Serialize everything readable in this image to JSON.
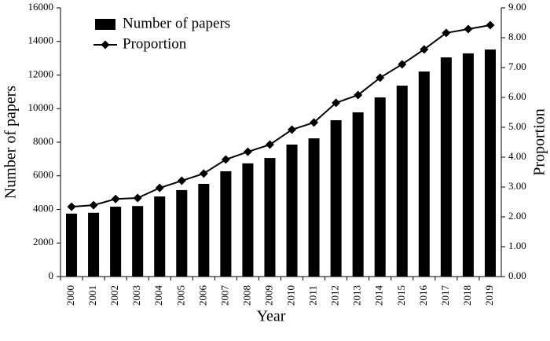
{
  "chart_data": {
    "type": "bar",
    "x_label": "Year",
    "y_label": "Number of papers",
    "y2_label": "Proportion",
    "categories": [
      "2000",
      "2001",
      "2002",
      "2003",
      "2004",
      "2005",
      "2006",
      "2007",
      "2008",
      "2009",
      "2010",
      "2011",
      "2012",
      "2013",
      "2014",
      "2015",
      "2016",
      "2017",
      "2018",
      "2019"
    ],
    "series": [
      {
        "name": "Number of papers",
        "type": "bar",
        "color": "#000000",
        "values": [
          3750,
          3800,
          4160,
          4200,
          4770,
          5150,
          5520,
          6270,
          6740,
          7060,
          7860,
          8230,
          9310,
          9780,
          10670,
          11370,
          12210,
          13050,
          13290,
          13520
        ]
      },
      {
        "name": "Proportion",
        "type": "line",
        "axis": "y2",
        "color": "#000000",
        "values": [
          2.34,
          2.39,
          2.6,
          2.63,
          2.97,
          3.21,
          3.45,
          3.92,
          4.18,
          4.42,
          4.92,
          5.16,
          5.82,
          6.08,
          6.66,
          7.11,
          7.61,
          8.16,
          8.29,
          8.42
        ]
      }
    ],
    "ylim": [
      0,
      16000
    ],
    "yticks": [
      0,
      2000,
      4000,
      6000,
      8000,
      10000,
      12000,
      14000,
      16000
    ],
    "y2lim": [
      0,
      9
    ],
    "y2ticks": [
      {
        "value": 0,
        "label": "0.00"
      },
      {
        "value": 1,
        "label": "1.00"
      },
      {
        "value": 2,
        "label": "2.00"
      },
      {
        "value": 3,
        "label": "3.00"
      },
      {
        "value": 4,
        "label": "4.00"
      },
      {
        "value": 5,
        "label": "5.00"
      },
      {
        "value": 6,
        "label": "6.00"
      },
      {
        "value": 7,
        "label": "7.00"
      },
      {
        "value": 8,
        "label": "8.00"
      },
      {
        "value": 9,
        "label": "9.00"
      }
    ],
    "legend": "upper left",
    "grid": false
  }
}
